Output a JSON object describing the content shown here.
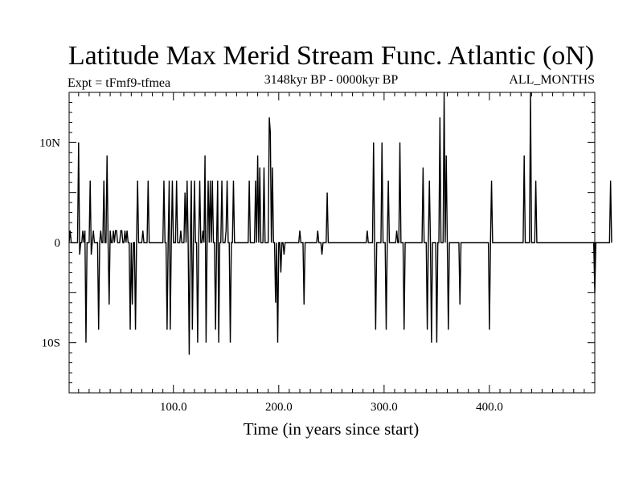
{
  "chart_data": {
    "type": "line",
    "title": "Latitude Max Merid Stream Func. Atlantic (oN)",
    "subtitle_left": "Expt = tFmf9-tfmea",
    "subtitle_center": "3148kyr BP - 0000kyr BP",
    "subtitle_right": "ALL_MONTHS",
    "xlabel": "Time (in years since start)",
    "ylabel": "",
    "xlim": [
      1,
      500
    ],
    "ylim": [
      -15,
      15
    ],
    "x_ticks": [
      {
        "value": 100,
        "label": "100.0"
      },
      {
        "value": 200,
        "label": "200.0"
      },
      {
        "value": 300,
        "label": "300.0"
      },
      {
        "value": 400,
        "label": "400.0"
      }
    ],
    "y_ticks": [
      {
        "value": 10,
        "label": "10N"
      },
      {
        "value": 0,
        "label": "0"
      },
      {
        "value": -10,
        "label": "10S"
      }
    ],
    "grid": false,
    "legend": "none",
    "line_color": "#000000",
    "series": [
      {
        "x_start": 1,
        "x_step": 1,
        "values": [
          0,
          1.2,
          0,
          0,
          0,
          0,
          0,
          0,
          0,
          10,
          -1.2,
          0,
          0,
          1.2,
          0,
          1.2,
          -10,
          0,
          0,
          0,
          6.2,
          -1.2,
          0,
          1.2,
          0,
          0,
          0,
          0,
          -8.7,
          0,
          1.2,
          0,
          0,
          6.2,
          0,
          0,
          8.7,
          0,
          -6.2,
          1.2,
          0,
          0,
          1.2,
          0,
          1.2,
          1.2,
          0,
          0,
          0,
          1.2,
          1.2,
          0,
          0,
          1.2,
          0,
          1.2,
          0,
          0,
          -8.7,
          0,
          -6.2,
          0,
          0,
          -8.7,
          0,
          6.2,
          0,
          0,
          0,
          0,
          1.2,
          0,
          0,
          0,
          0,
          6.2,
          0,
          0,
          0,
          0,
          0,
          0,
          0,
          0,
          0,
          0,
          0,
          0,
          0,
          0,
          6.2,
          0,
          0,
          -8.7,
          0,
          6.2,
          -8.7,
          0,
          6.2,
          0,
          0,
          0,
          6.2,
          0,
          0,
          0,
          1.2,
          0,
          0,
          0,
          5,
          0,
          6.2,
          0,
          -11.2,
          0,
          6.2,
          -8.7,
          0,
          6.2,
          0,
          0,
          -10,
          0,
          6.2,
          0,
          0,
          1.2,
          0,
          8.7,
          -10,
          0,
          6.2,
          0,
          6.2,
          0,
          6.2,
          0,
          0,
          -8.7,
          0,
          6.2,
          -10,
          0,
          0,
          6.2,
          0,
          0,
          0,
          1.2,
          6.2,
          0,
          0,
          -10,
          0,
          0,
          6.2,
          0,
          0,
          0,
          0,
          0,
          0,
          0,
          0,
          0,
          0,
          0,
          0,
          0,
          0,
          6.2,
          0,
          0,
          0,
          0,
          0,
          6.2,
          0,
          8.7,
          0,
          7.5,
          0,
          0,
          0,
          7.5,
          0,
          0,
          0,
          0,
          12.5,
          11,
          0,
          7.5,
          0,
          0,
          -6,
          0,
          -10,
          0,
          0,
          -3,
          0,
          0,
          -1.2,
          0,
          0,
          0,
          0,
          0,
          0,
          0,
          0,
          0,
          0,
          0,
          0,
          0,
          0,
          1.2,
          0,
          0,
          0,
          -6.2,
          0,
          0,
          0,
          0,
          0,
          0,
          0,
          0,
          0,
          0,
          0,
          0,
          1.2,
          0,
          0,
          0,
          -1.2,
          0,
          0,
          0,
          0,
          5,
          0,
          0,
          0,
          0,
          0,
          0,
          0,
          0,
          0,
          0,
          0,
          0,
          0,
          0,
          0,
          0,
          0,
          0,
          0,
          0,
          0,
          0,
          0,
          0,
          0,
          0,
          0,
          0,
          0,
          0,
          0,
          0,
          0,
          0,
          0,
          0,
          0,
          1.2,
          0,
          0,
          0,
          0,
          0,
          10,
          0,
          -8.7,
          0,
          0,
          0,
          0,
          0,
          10,
          0,
          0,
          0,
          -8.7,
          0,
          6.2,
          0,
          0,
          0,
          0,
          0,
          0,
          0,
          1.2,
          0,
          0,
          10,
          0,
          0,
          0,
          -8.7,
          0,
          0,
          0,
          0,
          0,
          0,
          0,
          0,
          0,
          0,
          0,
          0,
          0,
          0,
          0,
          0,
          0,
          7.5,
          0,
          0,
          0,
          -8.7,
          0,
          6.2,
          0,
          -10,
          0,
          0,
          0,
          0,
          -10,
          0,
          0,
          12.5,
          0,
          0,
          0,
          15,
          0,
          8.7,
          0,
          -8.7,
          0,
          0,
          0,
          0,
          0,
          0,
          0,
          0,
          0,
          0,
          -6.2,
          0,
          0,
          0,
          0,
          0,
          0,
          0,
          0,
          0,
          0,
          0,
          0,
          0,
          0,
          0,
          0,
          0,
          0,
          0,
          0,
          0,
          0,
          0,
          0,
          0,
          0,
          0,
          -8.7,
          0,
          6.2,
          0,
          0,
          0,
          0,
          0,
          0,
          0,
          0,
          0,
          0,
          0,
          0,
          0,
          0,
          0,
          0,
          0,
          0,
          0,
          0,
          0,
          0,
          0,
          0,
          0,
          0,
          0,
          0,
          0,
          0,
          8.7,
          0,
          0,
          0,
          0,
          0,
          15,
          0,
          0,
          0,
          0,
          6.2,
          0,
          0,
          0,
          0,
          0,
          0,
          0,
          0,
          0,
          0,
          0,
          0,
          0,
          0,
          0,
          0,
          0,
          0,
          0,
          0,
          0,
          0,
          0,
          0,
          0,
          0,
          0,
          0,
          0,
          0,
          0,
          0,
          0,
          0,
          0,
          0,
          0,
          0,
          0,
          0,
          0,
          0,
          0,
          0,
          0,
          0,
          0,
          0,
          0,
          0,
          0,
          0,
          0,
          0,
          0,
          -5,
          0,
          0,
          0,
          0,
          0,
          0,
          0,
          0,
          0,
          0,
          0,
          0,
          0,
          0,
          6.2,
          0
        ]
      }
    ]
  }
}
